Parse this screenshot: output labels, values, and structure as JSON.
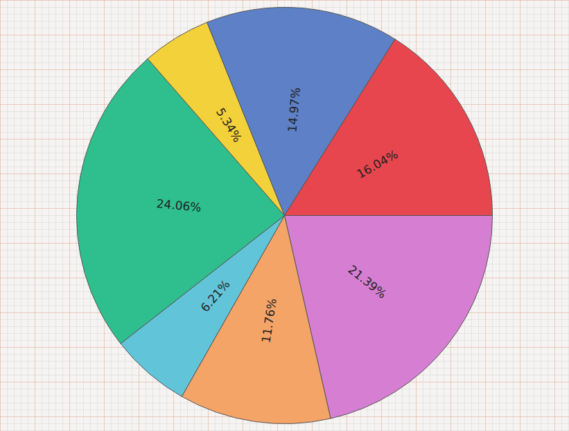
{
  "chart_data": {
    "type": "pie",
    "values": [
      21.39,
      11.76,
      6.21,
      24.06,
      5.34,
      14.97,
      16.04
    ],
    "value_labels": [
      "21.39%",
      "11.76%",
      "6.21%",
      "24.06%",
      "5.34%",
      "14.97%",
      "16.04%"
    ],
    "colors": [
      "#d67fd2",
      "#f5a468",
      "#62c4d8",
      "#2fbf8e",
      "#f2d13a",
      "#5d80c6",
      "#e8464e"
    ],
    "data_labels": true
  }
}
